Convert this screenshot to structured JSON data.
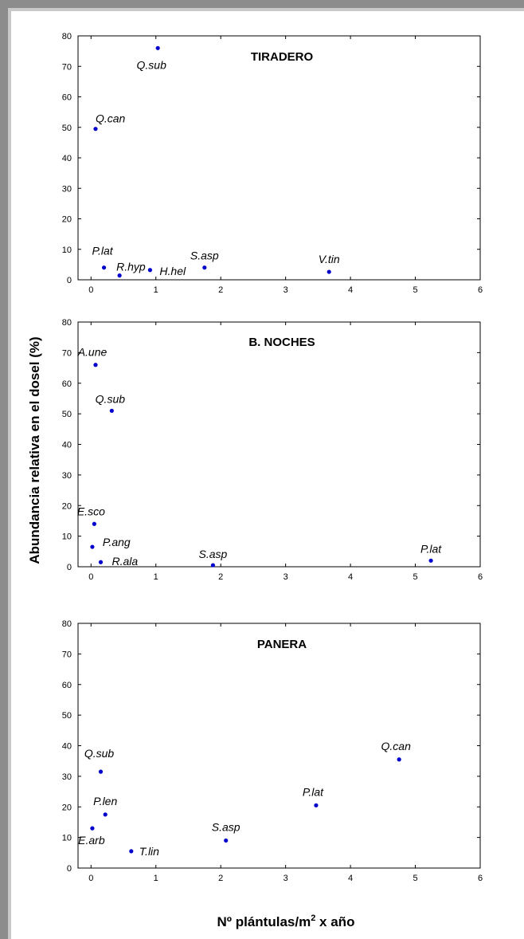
{
  "figure": {
    "ylabel": "Abundancia relativa en el dosel (%)",
    "xlabel_main": "Nº plántulas/m",
    "xlabel_sup": "2",
    "xlabel_tail": " x año"
  },
  "colors": {
    "point": "#0000cc",
    "frame_dark": "#8c8c8c",
    "frame_light": "#c8c8c8"
  },
  "chart_data": [
    {
      "type": "scatter",
      "title": "TIRADERO",
      "xlim": [
        -0.2,
        6
      ],
      "ylim": [
        0,
        80
      ],
      "xticks": [
        0,
        1,
        2,
        3,
        4,
        5,
        6
      ],
      "yticks": [
        0,
        10,
        20,
        30,
        40,
        50,
        60,
        70,
        80
      ],
      "points": [
        {
          "label": "Q.sub",
          "x": 1.03,
          "y": 76
        },
        {
          "label": "Q.can",
          "x": 0.07,
          "y": 49.5
        },
        {
          "label": "P.lat",
          "x": 0.2,
          "y": 4
        },
        {
          "label": "R.hyp",
          "x": 0.44,
          "y": 1.4
        },
        {
          "label": "H.hel",
          "x": 0.91,
          "y": 3.2
        },
        {
          "label": "S.asp",
          "x": 1.75,
          "y": 4
        },
        {
          "label": "V.tin",
          "x": 3.67,
          "y": 2.6
        }
      ]
    },
    {
      "type": "scatter",
      "title": "B. NOCHES",
      "xlim": [
        -0.2,
        6
      ],
      "ylim": [
        0,
        80
      ],
      "xticks": [
        0,
        1,
        2,
        3,
        4,
        5,
        6
      ],
      "yticks": [
        0,
        10,
        20,
        30,
        40,
        50,
        60,
        70,
        80
      ],
      "points": [
        {
          "label": "A.une",
          "x": 0.07,
          "y": 66
        },
        {
          "label": "Q.sub",
          "x": 0.32,
          "y": 51
        },
        {
          "label": "E.sco",
          "x": 0.05,
          "y": 14
        },
        {
          "label": "P.ang",
          "x": 0.02,
          "y": 6.5
        },
        {
          "label": "R.ala",
          "x": 0.15,
          "y": 1.5
        },
        {
          "label": "S.asp",
          "x": 1.88,
          "y": 0.5
        },
        {
          "label": "P.lat",
          "x": 5.24,
          "y": 2
        }
      ]
    },
    {
      "type": "scatter",
      "title": "PANERA",
      "xlim": [
        -0.2,
        6
      ],
      "ylim": [
        0,
        80
      ],
      "xticks": [
        0,
        1,
        2,
        3,
        4,
        5,
        6
      ],
      "yticks": [
        0,
        10,
        20,
        30,
        40,
        50,
        60,
        70,
        80
      ],
      "points": [
        {
          "label": "Q.sub",
          "x": 0.15,
          "y": 31.5
        },
        {
          "label": "Q.can",
          "x": 4.75,
          "y": 35.5
        },
        {
          "label": "P.lat",
          "x": 3.47,
          "y": 20.5
        },
        {
          "label": "P.len",
          "x": 0.22,
          "y": 17.5
        },
        {
          "label": "E.arb",
          "x": 0.02,
          "y": 13
        },
        {
          "label": "S.asp",
          "x": 2.08,
          "y": 9
        },
        {
          "label": "T.lin",
          "x": 0.62,
          "y": 5.5
        }
      ]
    }
  ]
}
